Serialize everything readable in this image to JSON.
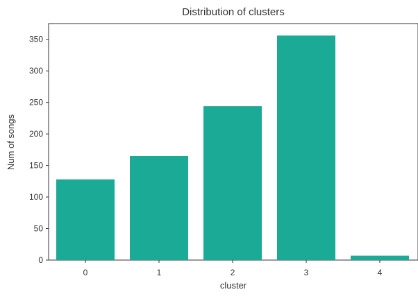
{
  "chart_data": {
    "type": "bar",
    "title": "Distribution of clusters",
    "xlabel": "cluster",
    "ylabel": "Num of songs",
    "categories": [
      "0",
      "1",
      "2",
      "3",
      "4"
    ],
    "values": [
      128,
      165,
      244,
      356,
      7
    ],
    "ylim": [
      0,
      375
    ],
    "yticks": [
      0,
      50,
      100,
      150,
      200,
      250,
      300,
      350
    ],
    "grid": false,
    "bar_color": "#1aaa96",
    "axis_color": "#333333"
  }
}
